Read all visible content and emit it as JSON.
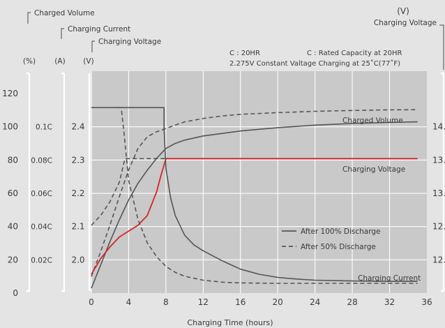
{
  "chart_data": {
    "type": "line",
    "title": "",
    "conditions": [
      "C : 20HR",
      "C : Rated Capacity at 20HR",
      "2.275V Constant Valtage Charging at 25˚C(77˚F)"
    ],
    "xlabel": "Charging Time (hours)",
    "xlim": [
      0,
      36
    ],
    "xticks": [
      "0",
      "4",
      "8",
      "12",
      "16",
      "20",
      "24",
      "28",
      "32",
      "36"
    ],
    "axes": {
      "volume": {
        "bracket_label": "Charged Volume",
        "unit": "(%)",
        "range": [
          0,
          120
        ],
        "ticks": [
          "0",
          "20",
          "40",
          "60",
          "80",
          "100",
          "120"
        ]
      },
      "current": {
        "bracket_label": "Charging Current",
        "unit": "(A)",
        "ticks": [
          "0.02C",
          "0.04C",
          "0.06C",
          "0.08C",
          "0.1C"
        ]
      },
      "voltage": {
        "bracket_label": "Charging Voltage",
        "unit": "(V)",
        "ticks": [
          "2.0",
          "2.1",
          "2.2",
          "2.3",
          "2.4"
        ]
      },
      "voltage_right": {
        "title": "Charging Voltage",
        "unit": "(V)",
        "ticks": [
          "12.",
          "12.",
          "13.",
          "13.",
          "14."
        ]
      }
    },
    "curve_labels": {
      "volume": "Charged Volume",
      "voltage": "Charging Voltage",
      "current": "Charging Current"
    },
    "legend": {
      "placement": "inside lower-right",
      "entries": [
        {
          "name": "After 100% Discharge",
          "dash": "solid"
        },
        {
          "name": "After 50% Discharge",
          "dash": "dashed"
        }
      ]
    },
    "series": [
      {
        "key": "volume_100",
        "name": "",
        "color": "#555555",
        "dash": false,
        "axis": "volume",
        "x": [
          0,
          1,
          2,
          3,
          4,
          5,
          6,
          7,
          8,
          9,
          10,
          12,
          16,
          20,
          24,
          28,
          32,
          35
        ],
        "y": [
          3,
          17,
          31,
          44,
          56,
          66,
          74,
          81,
          87,
          90,
          92,
          94.5,
          97.5,
          99.5,
          101,
          102,
          102.6,
          103
        ]
      },
      {
        "key": "volume_50",
        "name": "",
        "color": "#555555",
        "dash": true,
        "axis": "volume",
        "x": [
          0,
          1,
          2,
          3,
          4,
          5,
          6,
          7,
          8,
          9,
          10,
          12,
          14,
          16,
          20,
          24,
          28,
          32,
          35
        ],
        "y": [
          10,
          25,
          41,
          58,
          74,
          87,
          94,
          97,
          99,
          101,
          103,
          105,
          106.5,
          107.5,
          108.5,
          109.3,
          109.8,
          110.2,
          110.3
        ]
      },
      {
        "key": "voltage_100",
        "name": "",
        "color": "#d42525",
        "dash": false,
        "axis": "voltage_y",
        "x": [
          0,
          1,
          2,
          3,
          4,
          5,
          6,
          7,
          7.5,
          8,
          12,
          20,
          28,
          35
        ],
        "y": [
          1.98,
          2.02,
          2.05,
          2.075,
          2.09,
          2.105,
          2.13,
          2.19,
          2.235,
          2.275,
          2.275,
          2.275,
          2.275,
          2.275
        ]
      },
      {
        "key": "voltage_50",
        "name": "",
        "color": "#555555",
        "dash": true,
        "axis": "voltage_y",
        "x": [
          0,
          1,
          2,
          3,
          3.6,
          4,
          8
        ],
        "y": [
          2.105,
          2.13,
          2.165,
          2.215,
          2.275,
          2.275,
          2.275
        ]
      },
      {
        "key": "current_100",
        "name": "",
        "color": "#555555",
        "dash": false,
        "axis": "voltage_y",
        "x": [
          0,
          7.8,
          7.8,
          8,
          8.5,
          9,
          10,
          11,
          12,
          14,
          16,
          18,
          20,
          22,
          24,
          28,
          32,
          35
        ],
        "y": [
          2.405,
          2.405,
          2.35,
          2.25,
          2.175,
          2.13,
          2.08,
          2.055,
          2.04,
          2.015,
          1.993,
          1.98,
          1.972,
          1.968,
          1.965,
          1.963,
          1.962,
          1.962
        ]
      },
      {
        "key": "current_50",
        "name": "",
        "color": "#555555",
        "dash": true,
        "axis": "voltage_y",
        "x": [
          2.8,
          3.2,
          3.5,
          4,
          5,
          6,
          7,
          8,
          9,
          10,
          12,
          14,
          16,
          20,
          24,
          28,
          35
        ],
        "y": [
          2.405,
          2.405,
          2.34,
          2.22,
          2.12,
          2.06,
          2.025,
          2.0,
          1.985,
          1.975,
          1.965,
          1.96,
          1.958,
          1.957,
          1.957,
          1.957,
          1.957
        ]
      }
    ]
  }
}
